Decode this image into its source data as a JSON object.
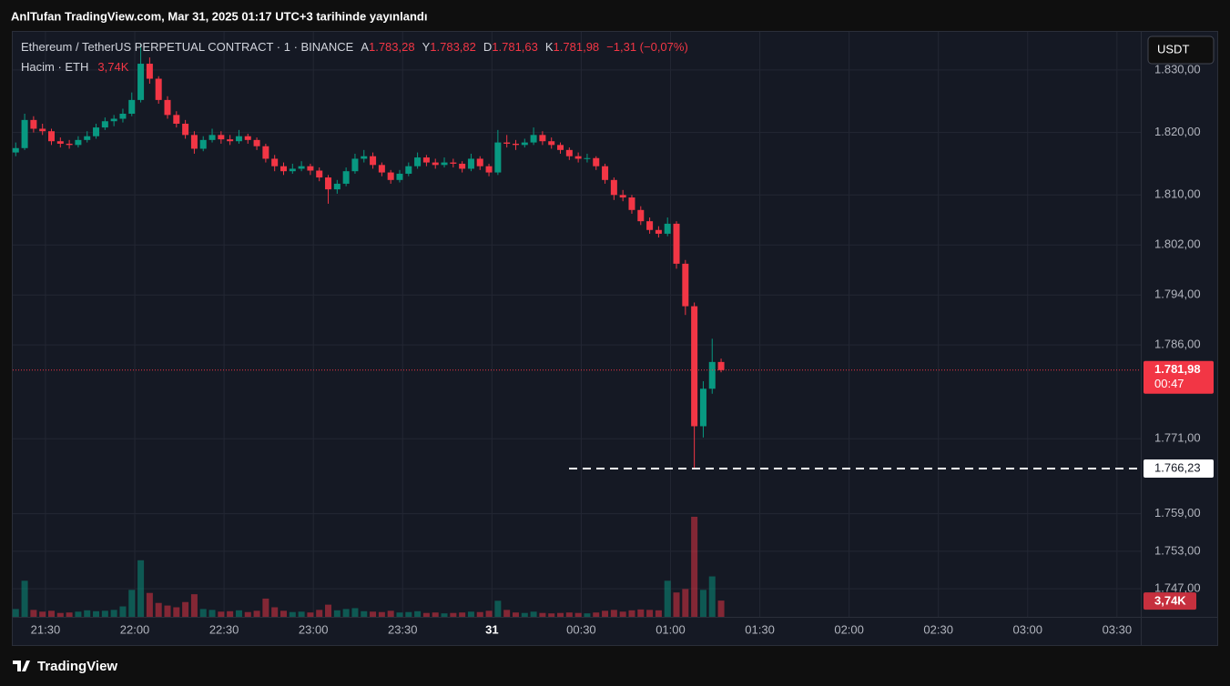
{
  "header": "AnlTufan TradingView.com, Mar 31, 2025 01:17 UTC+3 tarihinde yayınlandı",
  "footer": "TradingView",
  "chart_data": {
    "type": "candlestick",
    "title": "Ethereum / TetherUS PERPETUAL CONTRACT · 1 · BINANCE",
    "ohlc_labels": [
      "A",
      "Y",
      "D",
      "K"
    ],
    "ohlc_values": [
      "1.783,28",
      "1.783,82",
      "1.781,63",
      "1.781,98"
    ],
    "change": "−1,31 (−0,07%)",
    "volume_title": "Hacim · ETH",
    "volume_last_label": "3,74K",
    "currency": "USDT",
    "up_color": "#089981",
    "down_color": "#f23645",
    "grid": true,
    "x": [
      "21:20",
      "21:23",
      "21:26",
      "21:29",
      "21:32",
      "21:35",
      "21:38",
      "21:41",
      "21:44",
      "21:47",
      "21:50",
      "21:53",
      "21:56",
      "21:59",
      "22:02",
      "22:05",
      "22:08",
      "22:11",
      "22:14",
      "22:17",
      "22:20",
      "22:23",
      "22:26",
      "22:29",
      "22:32",
      "22:35",
      "22:38",
      "22:41",
      "22:44",
      "22:47",
      "22:50",
      "22:53",
      "22:56",
      "22:59",
      "23:02",
      "23:05",
      "23:08",
      "23:11",
      "23:14",
      "23:17",
      "23:20",
      "23:23",
      "23:26",
      "23:29",
      "23:32",
      "23:35",
      "23:38",
      "23:41",
      "23:44",
      "23:47",
      "23:50",
      "23:53",
      "23:56",
      "23:59",
      "00:02",
      "00:05",
      "00:08",
      "00:11",
      "00:14",
      "00:17",
      "00:20",
      "00:23",
      "00:26",
      "00:29",
      "00:32",
      "00:35",
      "00:38",
      "00:41",
      "00:44",
      "00:47",
      "00:50",
      "00:53",
      "00:56",
      "00:59",
      "01:02",
      "01:05",
      "01:08",
      "01:11",
      "01:14",
      "01:17"
    ],
    "open": [
      1816.8,
      1817.5,
      1822.0,
      1820.6,
      1820.2,
      1818.6,
      1818.2,
      1818.0,
      1818.8,
      1819.4,
      1820.8,
      1821.8,
      1822.2,
      1823.0,
      1825.2,
      1831.0,
      1828.6,
      1825.2,
      1822.8,
      1821.4,
      1819.6,
      1817.4,
      1818.8,
      1819.6,
      1818.9,
      1818.6,
      1819.4,
      1818.8,
      1817.8,
      1815.8,
      1814.6,
      1813.8,
      1814.2,
      1814.6,
      1813.9,
      1812.8,
      1810.9,
      1811.8,
      1813.8,
      1815.8,
      1816.2,
      1814.8,
      1813.6,
      1812.4,
      1813.4,
      1814.6,
      1816.0,
      1815.2,
      1814.8,
      1815.2,
      1815.0,
      1814.2,
      1815.8,
      1814.6,
      1813.6,
      1818.4,
      1818.2,
      1818.0,
      1818.4,
      1819.6,
      1818.6,
      1818.0,
      1817.2,
      1816.2,
      1815.8,
      1815.9,
      1814.6,
      1812.4,
      1810.0,
      1809.6,
      1807.6,
      1805.8,
      1804.4,
      1803.8,
      1805.4,
      1799.0,
      1792.2,
      1773.0,
      1779.0,
      1783.28
    ],
    "high": [
      1818.4,
      1823.0,
      1822.6,
      1821.4,
      1820.6,
      1819.2,
      1818.8,
      1819.4,
      1820.2,
      1821.4,
      1822.4,
      1822.8,
      1823.8,
      1826.4,
      1834.2,
      1832.0,
      1829.0,
      1825.8,
      1823.4,
      1822.0,
      1820.2,
      1819.4,
      1820.6,
      1820.2,
      1819.6,
      1820.4,
      1819.8,
      1819.2,
      1818.2,
      1816.4,
      1815.2,
      1815.0,
      1815.4,
      1815.0,
      1814.4,
      1813.2,
      1812.4,
      1814.4,
      1816.6,
      1817.2,
      1816.8,
      1815.2,
      1814.0,
      1814.0,
      1815.2,
      1816.8,
      1816.4,
      1815.8,
      1816.0,
      1815.8,
      1815.4,
      1816.6,
      1816.2,
      1815.0,
      1820.4,
      1819.6,
      1818.8,
      1819.0,
      1820.8,
      1820.2,
      1819.2,
      1818.4,
      1817.6,
      1816.8,
      1816.6,
      1816.2,
      1815.0,
      1812.8,
      1810.8,
      1810.0,
      1808.2,
      1806.4,
      1805.0,
      1806.4,
      1805.8,
      1799.6,
      1792.8,
      1780.2,
      1787.0,
      1783.82
    ],
    "low": [
      1816.2,
      1817.2,
      1820.0,
      1819.6,
      1818.0,
      1817.6,
      1817.4,
      1817.6,
      1818.4,
      1819.0,
      1820.4,
      1821.0,
      1821.6,
      1822.6,
      1824.8,
      1827.8,
      1824.6,
      1822.2,
      1820.8,
      1819.0,
      1816.6,
      1817.0,
      1818.4,
      1818.2,
      1818.0,
      1818.2,
      1818.2,
      1817.2,
      1815.2,
      1813.8,
      1813.2,
      1813.4,
      1813.8,
      1813.2,
      1812.2,
      1808.6,
      1810.2,
      1811.4,
      1813.4,
      1815.2,
      1814.2,
      1813.0,
      1811.8,
      1812.0,
      1813.0,
      1814.2,
      1814.6,
      1814.2,
      1814.4,
      1814.4,
      1813.6,
      1813.8,
      1814.0,
      1813.0,
      1813.2,
      1817.6,
      1817.2,
      1817.6,
      1818.0,
      1818.0,
      1817.4,
      1816.6,
      1815.6,
      1815.2,
      1815.2,
      1814.0,
      1811.8,
      1809.2,
      1809.0,
      1807.0,
      1805.2,
      1803.8,
      1803.2,
      1803.4,
      1798.2,
      1790.8,
      1766.23,
      1771.2,
      1778.2,
      1781.63
    ],
    "close": [
      1817.5,
      1822.0,
      1820.6,
      1820.2,
      1818.6,
      1818.2,
      1818.0,
      1818.8,
      1819.4,
      1820.8,
      1821.8,
      1822.2,
      1823.0,
      1825.2,
      1831.0,
      1828.6,
      1825.2,
      1822.8,
      1821.4,
      1819.6,
      1817.4,
      1818.8,
      1819.6,
      1818.9,
      1818.6,
      1819.4,
      1818.8,
      1817.8,
      1815.8,
      1814.6,
      1813.8,
      1814.2,
      1814.6,
      1813.9,
      1812.8,
      1810.9,
      1811.8,
      1813.8,
      1815.8,
      1816.2,
      1814.8,
      1813.6,
      1812.4,
      1813.4,
      1814.6,
      1816.0,
      1815.2,
      1814.8,
      1815.2,
      1815.0,
      1814.2,
      1815.8,
      1814.6,
      1813.6,
      1818.4,
      1818.2,
      1818.0,
      1818.4,
      1819.6,
      1818.6,
      1818.0,
      1817.2,
      1816.2,
      1815.8,
      1815.9,
      1814.6,
      1812.4,
      1810.0,
      1809.6,
      1807.6,
      1805.8,
      1804.4,
      1803.8,
      1805.4,
      1799.0,
      1792.2,
      1773.0,
      1779.0,
      1783.28,
      1781.98
    ],
    "volume": [
      1800,
      8300,
      1600,
      1200,
      1400,
      900,
      1000,
      1200,
      1500,
      1300,
      1400,
      1600,
      2400,
      6200,
      13000,
      5500,
      3200,
      2600,
      2200,
      3400,
      5200,
      1800,
      1600,
      1200,
      1300,
      1500,
      1100,
      1400,
      4200,
      2200,
      1400,
      1100,
      1200,
      1000,
      1600,
      2800,
      1500,
      1800,
      2000,
      1300,
      1200,
      1100,
      1400,
      1000,
      1100,
      1300,
      900,
      1000,
      800,
      900,
      1000,
      1200,
      1100,
      1400,
      3700,
      1600,
      1000,
      900,
      1200,
      900,
      800,
      900,
      1000,
      900,
      800,
      1000,
      1400,
      1600,
      1200,
      1500,
      1700,
      1600,
      1500,
      8300,
      5600,
      6400,
      23000,
      6200,
      9300,
      3740
    ],
    "ylim": [
      1742.5,
      1836.1
    ],
    "yticks": [
      {
        "value": 1747,
        "label": "1.747,00"
      },
      {
        "value": 1753,
        "label": "1.753,00"
      },
      {
        "value": 1759,
        "label": "1.759,00"
      },
      {
        "value": 1771,
        "label": "1.771,00"
      },
      {
        "value": 1786,
        "label": "1.786,00"
      },
      {
        "value": 1794,
        "label": "1.794,00"
      },
      {
        "value": 1802,
        "label": "1.802,00"
      },
      {
        "value": 1810,
        "label": "1.810,00"
      },
      {
        "value": 1820,
        "label": "1.820,00"
      },
      {
        "value": 1830,
        "label": "1.830,00"
      }
    ],
    "xlim": [
      "21:19",
      "03:38"
    ],
    "xticks": [
      "21:30",
      "22:00",
      "22:30",
      "23:00",
      "23:30",
      {
        "value": "00:00",
        "label": "31"
      },
      "00:30",
      "01:00",
      "01:30",
      "02:00",
      "02:30",
      "03:00",
      "03:30"
    ],
    "price_tag": {
      "label": "1.781,98",
      "countdown": "00:47"
    },
    "level": {
      "value": 1766.23,
      "label": "1.766,23"
    }
  }
}
